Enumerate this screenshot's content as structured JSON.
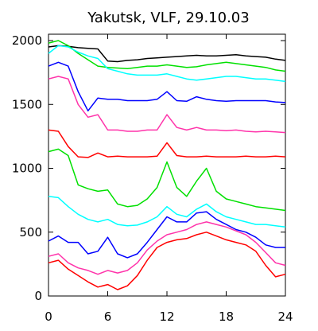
{
  "title": "Yakutsk, VLF, 29.10.03",
  "chart_data": {
    "type": "line",
    "title": "Yakutsk, VLF, 29.10.03",
    "xlabel": "",
    "ylabel": "",
    "xlim": [
      0,
      24
    ],
    "ylim": [
      0,
      2050
    ],
    "x_ticks": [
      0,
      6,
      12,
      18,
      24
    ],
    "x_tick_labels": [
      "0",
      "6",
      "12",
      "18",
      "24"
    ],
    "y_ticks": [
      0,
      500,
      1000,
      1500,
      2000
    ],
    "y_tick_labels": [
      "0",
      "500",
      "1000",
      "1500",
      "2000"
    ],
    "grid": false,
    "legend": "none",
    "series": [
      {
        "color": "#000000",
        "x": [
          0,
          1,
          2,
          3,
          4,
          5,
          6,
          7,
          8,
          9,
          10,
          11,
          12,
          13,
          14,
          15,
          16,
          17,
          18,
          19,
          20,
          21,
          22,
          23,
          24
        ],
        "values": [
          1950,
          1960,
          1955,
          1945,
          1940,
          1935,
          1840,
          1835,
          1845,
          1850,
          1860,
          1865,
          1870,
          1875,
          1880,
          1885,
          1880,
          1880,
          1885,
          1890,
          1880,
          1875,
          1870,
          1855,
          1845
        ]
      },
      {
        "color": "#00e000",
        "x": [
          0,
          1,
          2,
          3,
          4,
          5,
          6,
          7,
          8,
          9,
          10,
          11,
          12,
          13,
          14,
          15,
          16,
          17,
          18,
          19,
          20,
          21,
          22,
          23,
          24
        ],
        "values": [
          1980,
          2000,
          1960,
          1900,
          1850,
          1800,
          1790,
          1785,
          1780,
          1790,
          1800,
          1800,
          1810,
          1800,
          1790,
          1795,
          1810,
          1820,
          1830,
          1820,
          1810,
          1800,
          1790,
          1770,
          1760
        ]
      },
      {
        "color": "#00ffff",
        "x": [
          0,
          1,
          2,
          3,
          4,
          5,
          6,
          7,
          8,
          9,
          10,
          11,
          12,
          13,
          14,
          15,
          16,
          17,
          18,
          19,
          20,
          21,
          22,
          23,
          24
        ],
        "values": [
          1900,
          1960,
          1950,
          1910,
          1880,
          1860,
          1780,
          1760,
          1740,
          1730,
          1730,
          1730,
          1740,
          1720,
          1700,
          1690,
          1700,
          1710,
          1720,
          1720,
          1710,
          1700,
          1700,
          1690,
          1680
        ]
      },
      {
        "color": "#0000ff",
        "x": [
          0,
          1,
          2,
          3,
          4,
          5,
          6,
          7,
          8,
          9,
          10,
          11,
          12,
          13,
          14,
          15,
          16,
          17,
          18,
          19,
          20,
          21,
          22,
          23,
          24
        ],
        "values": [
          1800,
          1830,
          1800,
          1600,
          1450,
          1550,
          1540,
          1540,
          1530,
          1530,
          1530,
          1540,
          1600,
          1530,
          1525,
          1560,
          1540,
          1530,
          1525,
          1530,
          1530,
          1530,
          1530,
          1520,
          1515
        ]
      },
      {
        "color": "#ff33aa",
        "x": [
          0,
          1,
          2,
          3,
          4,
          5,
          6,
          7,
          8,
          9,
          10,
          11,
          12,
          13,
          14,
          15,
          16,
          17,
          18,
          19,
          20,
          21,
          22,
          23,
          24
        ],
        "values": [
          1700,
          1720,
          1700,
          1500,
          1400,
          1420,
          1300,
          1300,
          1290,
          1290,
          1300,
          1300,
          1420,
          1320,
          1300,
          1320,
          1300,
          1300,
          1295,
          1300,
          1290,
          1285,
          1290,
          1285,
          1280
        ]
      },
      {
        "color": "#ff0000",
        "x": [
          0,
          1,
          2,
          3,
          4,
          5,
          6,
          7,
          8,
          9,
          10,
          11,
          12,
          13,
          14,
          15,
          16,
          17,
          18,
          19,
          20,
          21,
          22,
          23,
          24
        ],
        "values": [
          1300,
          1290,
          1170,
          1090,
          1085,
          1120,
          1090,
          1095,
          1090,
          1090,
          1090,
          1095,
          1200,
          1100,
          1090,
          1090,
          1095,
          1090,
          1090,
          1090,
          1095,
          1090,
          1090,
          1095,
          1090
        ]
      },
      {
        "color": "#00e000",
        "x": [
          0,
          1,
          2,
          3,
          4,
          5,
          6,
          7,
          8,
          9,
          10,
          11,
          12,
          13,
          14,
          15,
          16,
          17,
          18,
          19,
          20,
          21,
          22,
          23,
          24
        ],
        "values": [
          1130,
          1150,
          1100,
          870,
          840,
          820,
          830,
          720,
          700,
          710,
          760,
          850,
          1050,
          850,
          780,
          900,
          1000,
          820,
          760,
          740,
          720,
          700,
          690,
          680,
          670
        ]
      },
      {
        "color": "#00ffff",
        "x": [
          0,
          1,
          2,
          3,
          4,
          5,
          6,
          7,
          8,
          9,
          10,
          11,
          12,
          13,
          14,
          15,
          16,
          17,
          18,
          19,
          20,
          21,
          22,
          23,
          24
        ],
        "values": [
          780,
          770,
          700,
          640,
          600,
          580,
          600,
          560,
          550,
          555,
          580,
          620,
          700,
          640,
          620,
          680,
          720,
          660,
          620,
          600,
          580,
          560,
          560,
          550,
          540
        ]
      },
      {
        "color": "#0000ff",
        "x": [
          0,
          1,
          2,
          3,
          4,
          5,
          6,
          7,
          8,
          9,
          10,
          11,
          12,
          13,
          14,
          15,
          16,
          17,
          18,
          19,
          20,
          21,
          22,
          23,
          24
        ],
        "values": [
          430,
          470,
          420,
          420,
          330,
          350,
          460,
          330,
          300,
          330,
          420,
          520,
          620,
          580,
          580,
          650,
          660,
          600,
          560,
          520,
          500,
          460,
          400,
          380,
          380
        ]
      },
      {
        "color": "#ff33aa",
        "x": [
          0,
          1,
          2,
          3,
          4,
          5,
          6,
          7,
          8,
          9,
          10,
          11,
          12,
          13,
          14,
          15,
          16,
          17,
          18,
          19,
          20,
          21,
          22,
          23,
          24
        ],
        "values": [
          310,
          330,
          260,
          220,
          200,
          170,
          200,
          180,
          200,
          260,
          360,
          430,
          480,
          500,
          520,
          560,
          580,
          560,
          540,
          510,
          480,
          420,
          340,
          260,
          240
        ]
      },
      {
        "color": "#ff0000",
        "x": [
          0,
          1,
          2,
          3,
          4,
          5,
          6,
          7,
          8,
          9,
          10,
          11,
          12,
          13,
          14,
          15,
          16,
          17,
          18,
          19,
          20,
          21,
          22,
          23,
          24
        ],
        "values": [
          260,
          280,
          210,
          160,
          110,
          70,
          90,
          50,
          80,
          160,
          280,
          380,
          420,
          440,
          450,
          480,
          500,
          470,
          440,
          420,
          400,
          350,
          240,
          150,
          170
        ]
      }
    ]
  }
}
